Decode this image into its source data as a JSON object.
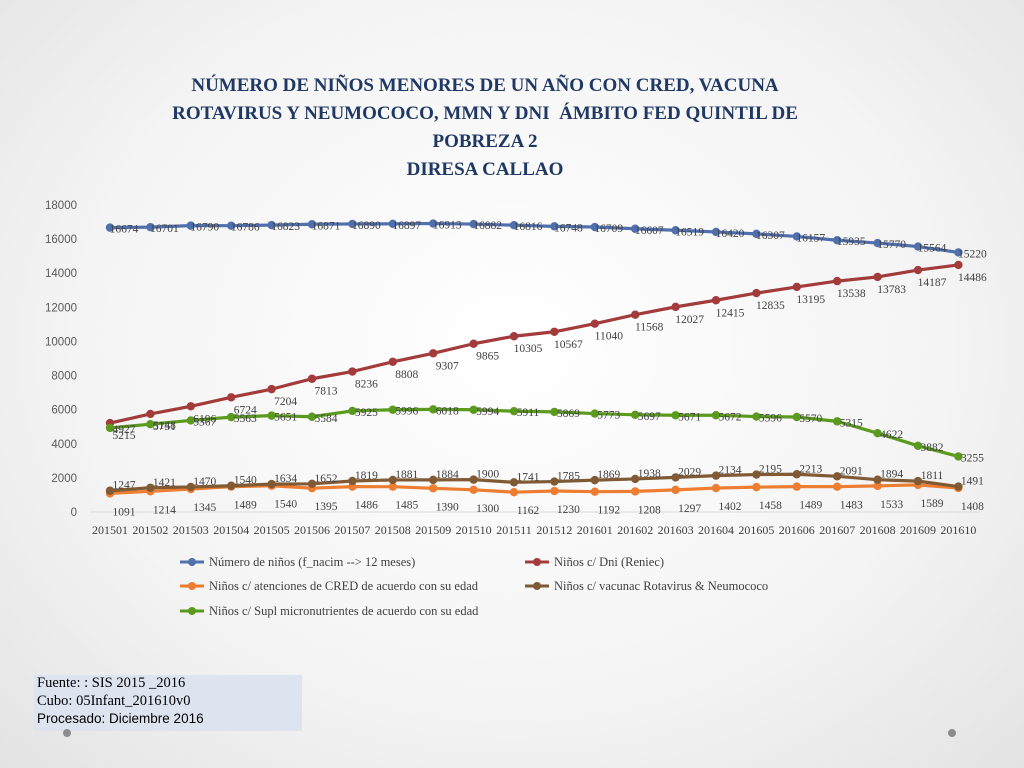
{
  "chart_data": {
    "type": "line",
    "title": [
      "NÚMERO DE NIÑOS MENORES DE UN AÑO CON CRED, VACUNA",
      "ROTAVIRUS Y NEUMOCOCO, MMN Y DNI  ÁMBITO FED QUINTIL DE",
      "POBREZA 2",
      "DIRESA CALLAO"
    ],
    "xlabel": "",
    "ylabel": "",
    "ylim": [
      0,
      18000
    ],
    "yticks": [
      0,
      2000,
      4000,
      6000,
      8000,
      10000,
      12000,
      14000,
      16000,
      18000
    ],
    "grid": false,
    "legend_position": "bottom",
    "categories": [
      "201501",
      "201502",
      "201503",
      "201504",
      "201505",
      "201506",
      "201507",
      "201508",
      "201509",
      "201510",
      "201511",
      "201512",
      "201601",
      "201602",
      "201603",
      "201604",
      "201605",
      "201606",
      "201607",
      "201608",
      "201609",
      "201610"
    ],
    "series": [
      {
        "name": "Número de niños (f_nacim --> 12 meses)",
        "color": "#4f6fad",
        "values": [
          16674,
          16701,
          16790,
          16786,
          16823,
          16871,
          16890,
          16897,
          16913,
          16882,
          16816,
          16748,
          16709,
          16607,
          16519,
          16420,
          16307,
          16157,
          15935,
          15770,
          15564,
          15220
        ]
      },
      {
        "name": "Niños c/ Dni (Reniec)",
        "color": "#a33b3b",
        "values": [
          5215,
          5751,
          6196,
          6724,
          7204,
          7813,
          8236,
          8808,
          9307,
          9865,
          10305,
          10567,
          11040,
          11568,
          12027,
          12415,
          12835,
          13195,
          13538,
          13783,
          14187,
          14486
        ]
      },
      {
        "name": "Niños c/ atenciones de CRED de acuerdo con su edad",
        "color": "#ed7d31",
        "values": [
          1091,
          1214,
          1345,
          1489,
          1540,
          1395,
          1486,
          1485,
          1390,
          1300,
          1162,
          1230,
          1192,
          1208,
          1297,
          1402,
          1458,
          1489,
          1483,
          1533,
          1589,
          1408
        ]
      },
      {
        "name": "Niños c/ vacunac Rotavirus & Neumococo",
        "color": "#7f5a35",
        "values": [
          1247,
          1421,
          1470,
          1540,
          1634,
          1652,
          1819,
          1881,
          1884,
          1900,
          1741,
          1785,
          1869,
          1938,
          2029,
          2134,
          2195,
          2213,
          2091,
          1894,
          1811,
          1491
        ]
      },
      {
        "name": "Niños c/ Supl micronutrientes de acuerdo con su edad",
        "color": "#5a9a1d",
        "values": [
          4927,
          5148,
          5367,
          5563,
          5651,
          5584,
          5925,
          5996,
          6018,
          5994,
          5911,
          5869,
          5773,
          5697,
          5671,
          5672,
          5596,
          5570,
          5315,
          4622,
          3882,
          3255
        ]
      }
    ]
  },
  "source": {
    "line1": "Fuente: : SIS 2015 _2016",
    "line2": "Cubo: 05Infant_201610v0",
    "line3": "Procesado: Diciembre 2016"
  }
}
